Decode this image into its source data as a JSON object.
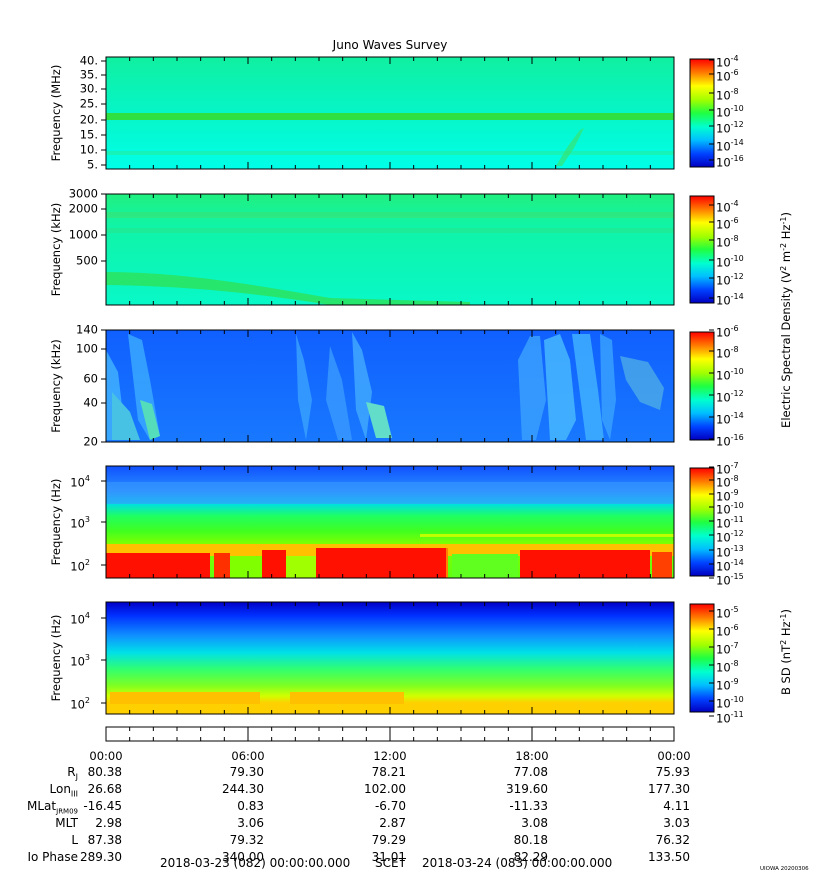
{
  "title": "Juno Waves Survey",
  "stamp": "UIOWA 20200306",
  "chart_data": [
    {
      "type": "heatmap",
      "ylabel": "Frequency (MHz)",
      "yticks": [
        "40.",
        "35.",
        "30.",
        "25.",
        "20.",
        "15.",
        "10.",
        "5."
      ],
      "ylim": [
        3.5,
        41
      ],
      "colorbar": {
        "ticks": [
          "10-4",
          "10-6",
          "10-8",
          "10-10",
          "10-12",
          "10-14",
          "10-16"
        ]
      },
      "bands": [
        {
          "center": 21,
          "description": "constant emission line"
        }
      ]
    },
    {
      "type": "heatmap",
      "ylabel": "Frequency (kHz)",
      "yticks": [
        "3000",
        "2000",
        "1000",
        "500"
      ],
      "colorbar": {
        "ticks": [
          "10-4",
          "10-6",
          "10-8",
          "10-10",
          "10-12",
          "10-14"
        ]
      }
    },
    {
      "type": "heatmap",
      "ylabel": "Frequency (kHz)",
      "yticks": [
        "140",
        "100",
        "60",
        "40",
        "20"
      ],
      "ylim": [
        20,
        140
      ],
      "colorbar": {
        "ticks": [
          "10-6",
          "10-8",
          "10-10",
          "10-12",
          "10-14",
          "10-16"
        ]
      }
    },
    {
      "type": "heatmap",
      "ylabel": "Frequency (Hz)",
      "yticks": [
        "10^4",
        "10^3",
        "10^2"
      ],
      "colorbar": {
        "ticks": [
          "10-7",
          "10-8",
          "10-9",
          "10-10",
          "10-11",
          "10-12",
          "10-13",
          "10-14",
          "10-15"
        ]
      }
    },
    {
      "type": "heatmap",
      "ylabel": "Frequency (Hz)",
      "yticks": [
        "10^4",
        "10^3",
        "10^2"
      ],
      "colorbar": {
        "ticks": [
          "10-5",
          "10-6",
          "10-7",
          "10-8",
          "10-9",
          "10-10",
          "10-11"
        ]
      }
    }
  ],
  "colorbar_labels": {
    "electric": "Electric Spectral Density (V² m⁻² Hz⁻¹)",
    "magnetic": "B SD (nT² Hz⁻¹)"
  },
  "time_axis": {
    "ticks": [
      "00:00",
      "06:00",
      "12:00",
      "18:00",
      "00:00"
    ]
  },
  "ephemeris": {
    "rows": [
      {
        "label": "RJ",
        "values": [
          "80.38",
          "79.30",
          "78.21",
          "77.08",
          "75.93"
        ]
      },
      {
        "label": "LonIII",
        "values": [
          "26.68",
          "244.30",
          "102.00",
          "319.60",
          "177.30"
        ]
      },
      {
        "label": "MLatJRM09",
        "values": [
          "-16.45",
          "0.83",
          "-6.70",
          "-11.33",
          "4.11"
        ]
      },
      {
        "label": "MLT",
        "values": [
          "2.98",
          "3.06",
          "2.87",
          "3.08",
          "3.03"
        ]
      },
      {
        "label": "L",
        "values": [
          "87.38",
          "79.32",
          "79.29",
          "80.18",
          "76.32"
        ]
      },
      {
        "label": "Io Phase",
        "values": [
          "289.30",
          "340.00",
          "31.01",
          "82.29",
          "133.50"
        ]
      }
    ]
  },
  "footer": {
    "start": "2018-03-23 (082) 00:00:00.000",
    "scet": "SCET",
    "end": "2018-03-24 (083) 00:00:00.000"
  }
}
